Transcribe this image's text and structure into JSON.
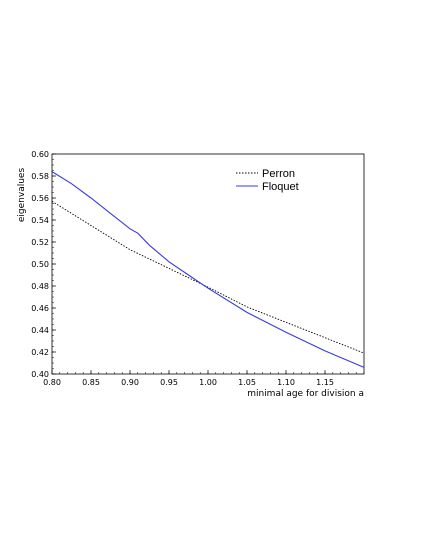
{
  "chart_data": {
    "type": "line",
    "title": "",
    "xlabel": "minimal age for division a",
    "ylabel": "eigenvalues",
    "xlim": [
      0.8,
      1.2
    ],
    "ylim": [
      0.4,
      0.6
    ],
    "xticks": [
      "0.80",
      "0.85",
      "0.90",
      "0.95",
      "1.00",
      "1.05",
      "1.10",
      "1.15"
    ],
    "yticks": [
      "0.40",
      "0.42",
      "0.44",
      "0.46",
      "0.48",
      "0.50",
      "0.52",
      "0.54",
      "0.56",
      "0.58",
      "0.60"
    ],
    "legend_position": "top-right",
    "grid": false,
    "series": [
      {
        "name": "Perron",
        "style": "dotted",
        "color": "#000000",
        "x": [
          0.8,
          0.85,
          0.9,
          0.95,
          1.0,
          1.05,
          1.1,
          1.15,
          1.2
        ],
        "y": [
          0.557,
          0.535,
          0.513,
          0.496,
          0.479,
          0.461,
          0.447,
          0.433,
          0.419
        ]
      },
      {
        "name": "Floquet",
        "style": "solid",
        "color": "#3b3bdd",
        "x": [
          0.8,
          0.825,
          0.85,
          0.875,
          0.9,
          0.91,
          0.925,
          0.95,
          0.975,
          1.0,
          1.05,
          1.1,
          1.15,
          1.2
        ],
        "y": [
          0.584,
          0.573,
          0.56,
          0.546,
          0.532,
          0.528,
          0.517,
          0.502,
          0.49,
          0.478,
          0.456,
          0.438,
          0.421,
          0.406
        ]
      }
    ]
  }
}
